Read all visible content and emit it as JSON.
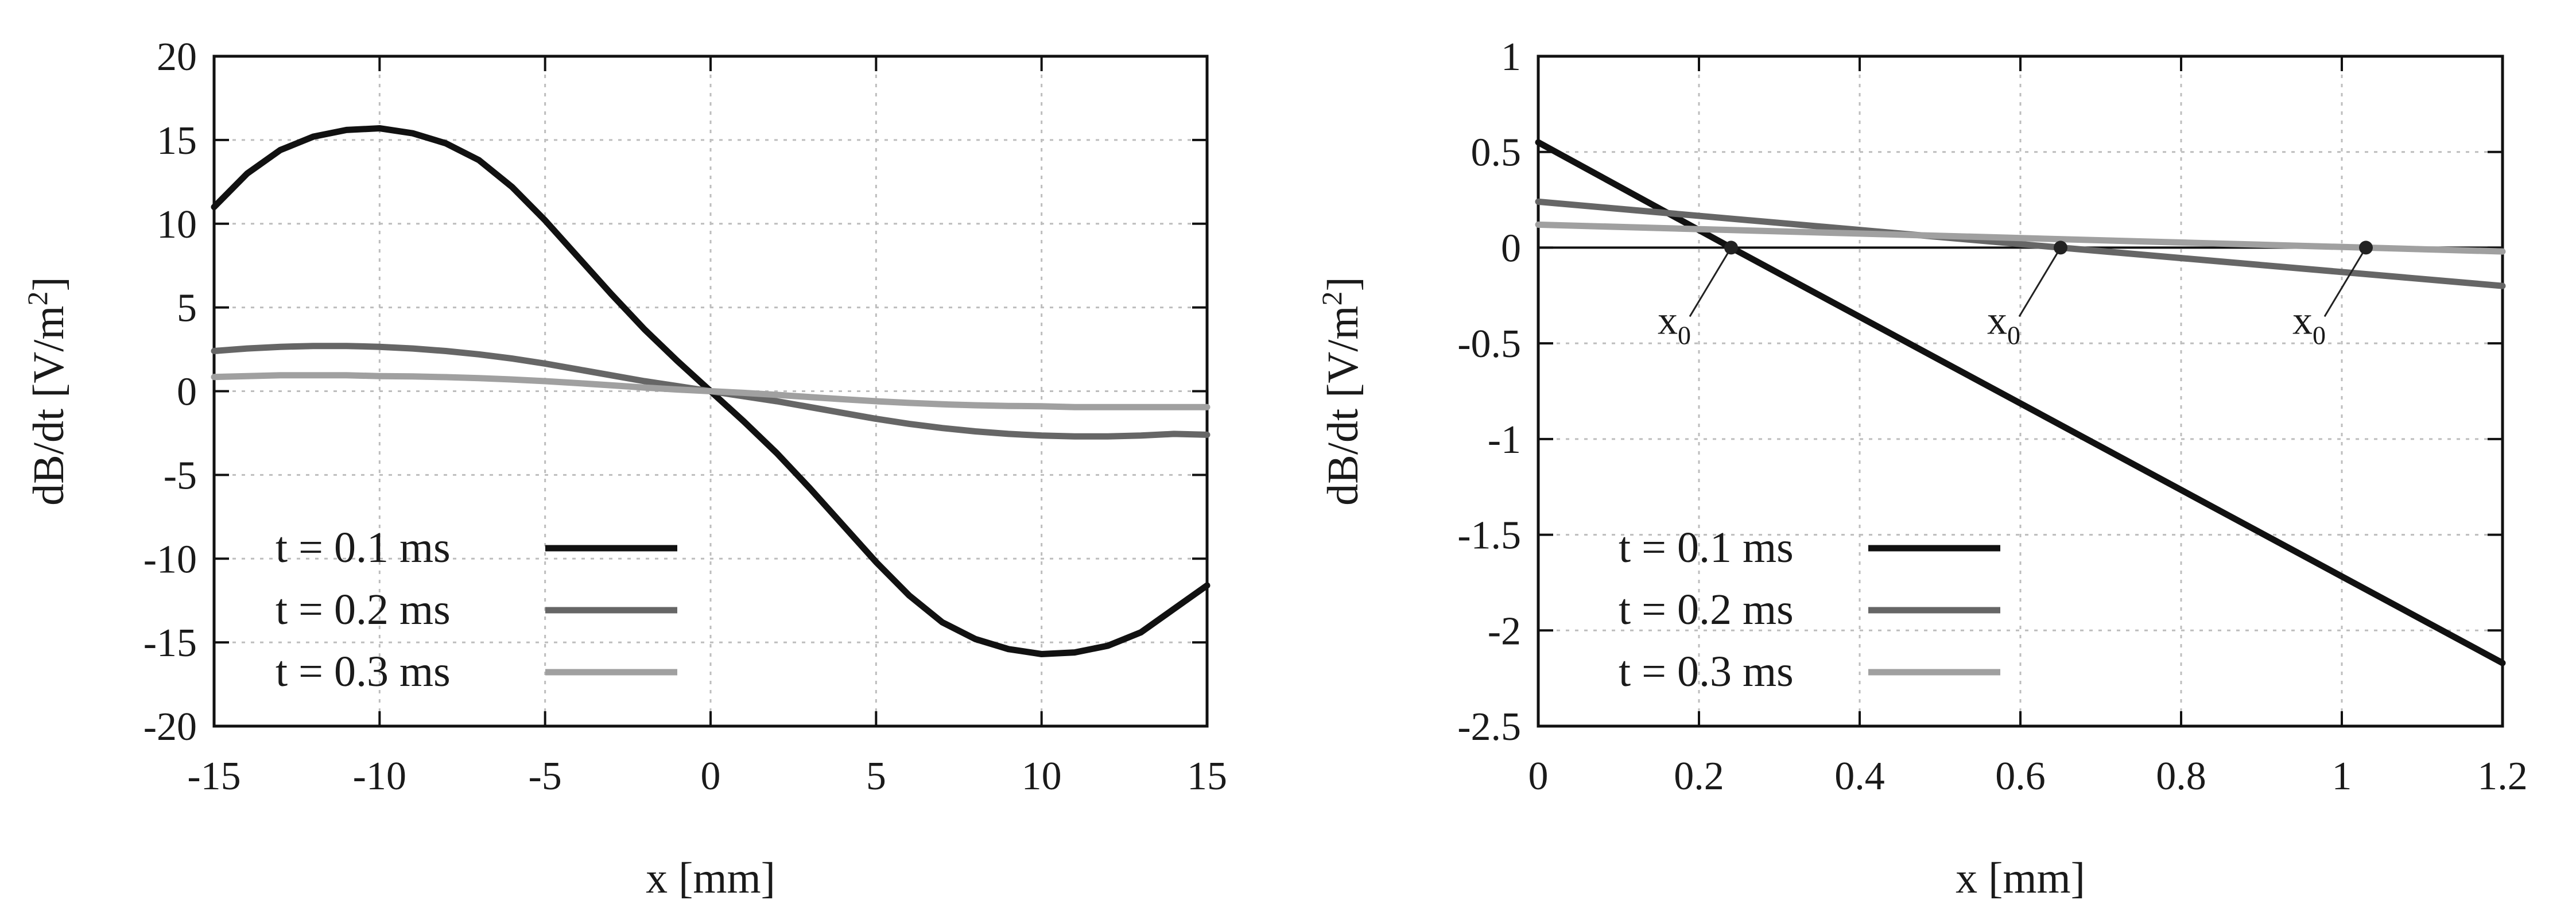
{
  "chart_data": [
    {
      "type": "line",
      "xlabel": "x [mm]",
      "ylabel": "dB/dt [V/m2]",
      "ylabel_parts": {
        "main": "dB/dt [V/m",
        "sup": "2",
        "close": "]"
      },
      "xlim": [
        -15,
        15
      ],
      "ylim": [
        -20,
        20
      ],
      "xticks": [
        -15,
        -10,
        -5,
        0,
        5,
        10,
        15
      ],
      "yticks": [
        -20,
        -15,
        -10,
        -5,
        0,
        5,
        10,
        15,
        20
      ],
      "grid": true,
      "legend_position": "bottom-left",
      "series": [
        {
          "name": "t = 0.1 ms",
          "color": "#111111",
          "x": [
            -15,
            -14,
            -13,
            -12,
            -11,
            -10,
            -9,
            -8,
            -7,
            -6,
            -5,
            -4,
            -3,
            -2,
            -1,
            0,
            1,
            2,
            3,
            4,
            5,
            6,
            7,
            8,
            9,
            10,
            11,
            12,
            13,
            14,
            15
          ],
          "y": [
            11.0,
            13.0,
            14.4,
            15.2,
            15.6,
            15.7,
            15.4,
            14.8,
            13.8,
            12.2,
            10.2,
            8.0,
            5.8,
            3.7,
            1.8,
            0,
            -1.8,
            -3.7,
            -5.8,
            -8.0,
            -10.2,
            -12.2,
            -13.8,
            -14.8,
            -15.4,
            -15.7,
            -15.6,
            -15.2,
            -14.4,
            -13.0,
            -11.6
          ]
        },
        {
          "name": "t = 0.2 ms",
          "color": "#666666",
          "x": [
            -15,
            -14,
            -13,
            -12,
            -11,
            -10,
            -9,
            -8,
            -7,
            -6,
            -5,
            -4,
            -3,
            -2,
            -1,
            0,
            1,
            2,
            3,
            4,
            5,
            6,
            7,
            8,
            9,
            10,
            11,
            12,
            13,
            14,
            15
          ],
          "y": [
            2.4,
            2.55,
            2.65,
            2.7,
            2.7,
            2.65,
            2.55,
            2.4,
            2.2,
            1.95,
            1.65,
            1.3,
            0.95,
            0.6,
            0.3,
            0,
            -0.3,
            -0.6,
            -0.95,
            -1.3,
            -1.65,
            -1.95,
            -2.2,
            -2.4,
            -2.55,
            -2.65,
            -2.7,
            -2.7,
            -2.65,
            -2.55,
            -2.6
          ]
        },
        {
          "name": "t = 0.3 ms",
          "color": "#a0a0a0",
          "x": [
            -15,
            -14,
            -13,
            -12,
            -11,
            -10,
            -9,
            -8,
            -7,
            -6,
            -5,
            -4,
            -3,
            -2,
            -1,
            0,
            1,
            2,
            3,
            4,
            5,
            6,
            7,
            8,
            9,
            10,
            11,
            12,
            13,
            14,
            15
          ],
          "y": [
            0.85,
            0.9,
            0.95,
            0.95,
            0.95,
            0.9,
            0.88,
            0.84,
            0.78,
            0.7,
            0.6,
            0.48,
            0.35,
            0.22,
            0.1,
            0,
            -0.1,
            -0.22,
            -0.35,
            -0.48,
            -0.6,
            -0.7,
            -0.78,
            -0.84,
            -0.88,
            -0.9,
            -0.95,
            -0.95,
            -0.95,
            -0.95,
            -0.95
          ]
        }
      ]
    },
    {
      "type": "line",
      "xlabel": "x [mm]",
      "ylabel": "dB/dt [V/m2]",
      "ylabel_parts": {
        "main": "dB/dt [V/m",
        "sup": "2",
        "close": "]"
      },
      "xlim": [
        0,
        1.2
      ],
      "ylim": [
        -2.5,
        1
      ],
      "xticks": [
        0,
        0.2,
        0.4,
        0.6,
        0.8,
        1,
        1.2
      ],
      "yticks": [
        -2.5,
        -2,
        -1.5,
        -1,
        -0.5,
        0,
        0.5,
        1
      ],
      "grid": true,
      "legend_position": "bottom-left",
      "zero_line": true,
      "series": [
        {
          "name": "t = 0.1 ms",
          "color": "#111111",
          "x": [
            0,
            0.24,
            1.2
          ],
          "y": [
            0.55,
            0,
            -2.17
          ]
        },
        {
          "name": "t = 0.2 ms",
          "color": "#666666",
          "x": [
            0,
            0.65,
            1.2
          ],
          "y": [
            0.24,
            0,
            -0.2
          ]
        },
        {
          "name": "t = 0.3 ms",
          "color": "#a0a0a0",
          "x": [
            0,
            1.03,
            1.2
          ],
          "y": [
            0.12,
            0,
            -0.02
          ]
        }
      ],
      "annotations": [
        {
          "text": "x",
          "sub": "0",
          "x": 0.24,
          "y": 0
        },
        {
          "text": "x",
          "sub": "0",
          "x": 0.65,
          "y": 0
        },
        {
          "text": "x",
          "sub": "0",
          "x": 1.03,
          "y": 0
        }
      ]
    }
  ]
}
